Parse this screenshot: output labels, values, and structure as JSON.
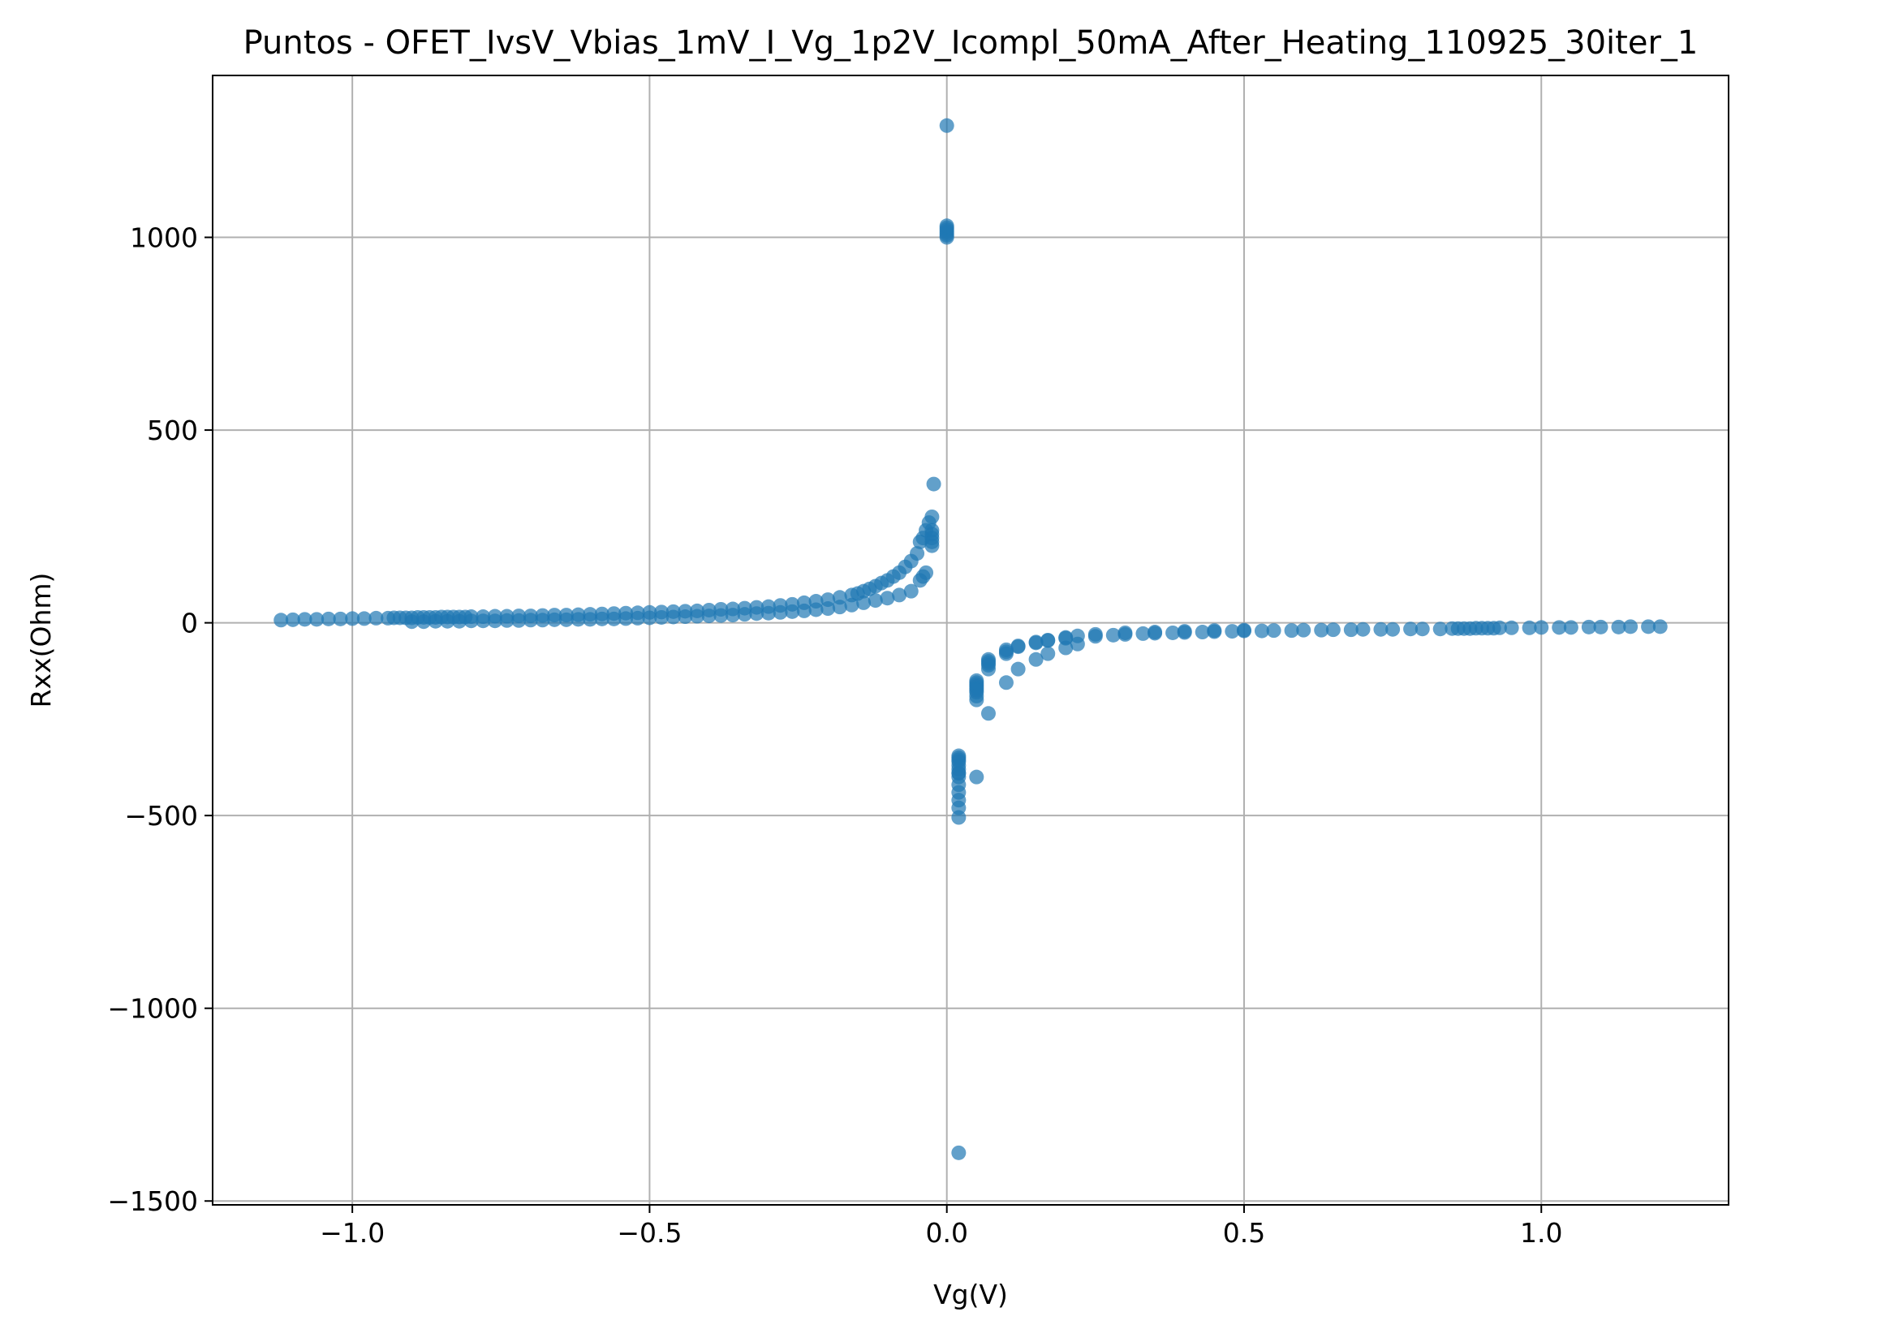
{
  "chart_data": {
    "type": "scatter",
    "title": "Puntos - OFET_IvsV_Vbias_1mV_I_Vg_1p2V_Icompl_50mA_After_Heating_110925_30iter_1",
    "xlabel": "Vg(V)",
    "ylabel": "Rxx(Ohm)",
    "xlim": [
      -1.235,
      1.315
    ],
    "ylim": [
      -1510,
      1420
    ],
    "xticks": [
      -1.0,
      -0.5,
      0.0,
      0.5,
      1.0
    ],
    "xtick_labels": [
      "−1.0",
      "−0.5",
      "0.0",
      "0.5",
      "1.0"
    ],
    "yticks": [
      -1500,
      -1000,
      -500,
      0,
      500,
      1000
    ],
    "ytick_labels": [
      "−1500",
      "−1000",
      "−500",
      "0",
      "500",
      "1000"
    ],
    "grid": true,
    "marker_color": "#1f77b4",
    "marker_alpha": 0.7,
    "series": [
      {
        "x": [
          -1.12,
          -1.1,
          -1.08,
          -1.06,
          -1.04,
          -1.02,
          -1.0,
          -0.98,
          -0.96,
          -0.94,
          -0.93,
          -0.92,
          -0.91,
          -0.9,
          -0.89,
          -0.88,
          -0.87,
          -0.86,
          -0.85,
          -0.84,
          -0.83,
          -0.82,
          -0.81,
          -0.8,
          -0.78,
          -0.76,
          -0.74,
          -0.72,
          -0.7,
          -0.68,
          -0.66,
          -0.64,
          -0.62,
          -0.6,
          -0.58,
          -0.56,
          -0.54,
          -0.52,
          -0.5,
          -0.48,
          -0.46,
          -0.44,
          -0.42,
          -0.4,
          -0.38,
          -0.36,
          -0.34,
          -0.32,
          -0.3,
          -0.28,
          -0.26,
          -0.24,
          -0.22,
          -0.2,
          -0.18,
          -0.16,
          -0.15,
          -0.14,
          -0.13,
          -0.12,
          -0.11,
          -0.1,
          -0.09,
          -0.08,
          -0.07,
          -0.06,
          -0.05,
          -0.045,
          -0.04,
          -0.035,
          -0.03,
          -0.025,
          -0.025,
          -0.025,
          -0.025,
          -0.025,
          -0.025,
          -0.022
        ],
        "y": [
          7,
          8,
          9,
          9,
          10,
          10,
          11,
          11,
          12,
          12,
          13,
          13,
          13,
          13,
          14,
          14,
          14,
          14,
          15,
          15,
          15,
          15,
          15,
          16,
          16,
          17,
          17,
          18,
          18,
          19,
          20,
          20,
          21,
          22,
          23,
          24,
          25,
          26,
          27,
          28,
          29,
          30,
          31,
          33,
          35,
          36,
          38,
          40,
          42,
          45,
          48,
          52,
          56,
          60,
          66,
          72,
          76,
          82,
          88,
          95,
          103,
          110,
          120,
          130,
          145,
          160,
          180,
          210,
          220,
          240,
          260,
          275,
          200,
          210,
          220,
          230,
          240,
          360
        ]
      },
      {
        "x": [
          -0.9,
          -0.88,
          -0.86,
          -0.84,
          -0.82,
          -0.8,
          -0.78,
          -0.76,
          -0.74,
          -0.72,
          -0.7,
          -0.68,
          -0.66,
          -0.64,
          -0.62,
          -0.6,
          -0.58,
          -0.56,
          -0.54,
          -0.52,
          -0.5,
          -0.48,
          -0.46,
          -0.44,
          -0.42,
          -0.4,
          -0.38,
          -0.36,
          -0.34,
          -0.32,
          -0.3,
          -0.28,
          -0.26,
          -0.24,
          -0.22,
          -0.2,
          -0.18,
          -0.16,
          -0.14,
          -0.12,
          -0.1,
          -0.08,
          -0.06,
          -0.045,
          -0.04,
          -0.035
        ],
        "y": [
          3,
          3,
          4,
          4,
          4,
          5,
          5,
          5,
          6,
          6,
          7,
          7,
          8,
          8,
          9,
          9,
          10,
          10,
          11,
          12,
          13,
          14,
          15,
          16,
          17,
          18,
          19,
          20,
          22,
          24,
          25,
          27,
          29,
          31,
          34,
          37,
          41,
          46,
          52,
          58,
          64,
          72,
          82,
          110,
          120,
          130
        ]
      },
      {
        "x": [
          0.0,
          0.0,
          0.0,
          0.0,
          0.0,
          0.0,
          0.0,
          0.0
        ],
        "y": [
          1290,
          1000,
          1005,
          1010,
          1015,
          1020,
          1025,
          1030
        ]
      },
      {
        "x": [
          0.02,
          0.02,
          0.02,
          0.02,
          0.02,
          0.02,
          0.02,
          0.02,
          0.02,
          0.02,
          0.02,
          0.02,
          0.02,
          0.02,
          0.05,
          0.05,
          0.05,
          0.05,
          0.05,
          0.05,
          0.05,
          0.05,
          0.05,
          0.07,
          0.07,
          0.07,
          0.07,
          0.07,
          0.1,
          0.1,
          0.1,
          0.12,
          0.12,
          0.15,
          0.15,
          0.17,
          0.17,
          0.2,
          0.2,
          0.22,
          0.25,
          0.28,
          0.3,
          0.33,
          0.35,
          0.38,
          0.4,
          0.43,
          0.45,
          0.48,
          0.5,
          0.53,
          0.55,
          0.58,
          0.6,
          0.63,
          0.65,
          0.68,
          0.7,
          0.73,
          0.75,
          0.78,
          0.8,
          0.83,
          0.85,
          0.86,
          0.87,
          0.88,
          0.89,
          0.9,
          0.91,
          0.92,
          0.93,
          0.95,
          0.98,
          1.0,
          1.03,
          1.05,
          1.08,
          1.1,
          1.13,
          1.15,
          1.18,
          1.2,
          0.02,
          0.05,
          0.07,
          0.1,
          0.12,
          0.15,
          0.17,
          0.2,
          0.22,
          0.25,
          0.3,
          0.35,
          0.4,
          0.45,
          0.5
        ],
        "y": [
          -1375,
          -505,
          -480,
          -460,
          -440,
          -420,
          -400,
          -390,
          -380,
          -370,
          -360,
          -355,
          -350,
          -345,
          -400,
          -200,
          -190,
          -180,
          -170,
          -165,
          -160,
          -155,
          -150,
          -235,
          -120,
          -110,
          -100,
          -95,
          -155,
          -80,
          -70,
          -120,
          -60,
          -95,
          -50,
          -80,
          -45,
          -65,
          -40,
          -55,
          -35,
          -32,
          -30,
          -28,
          -27,
          -26,
          -25,
          -24,
          -23,
          -22,
          -21,
          -21,
          -20,
          -20,
          -19,
          -19,
          -18,
          -18,
          -17,
          -17,
          -17,
          -16,
          -16,
          -16,
          -15,
          -15,
          -15,
          -15,
          -14,
          -14,
          -14,
          -14,
          -13,
          -13,
          -13,
          -12,
          -12,
          -12,
          -11,
          -11,
          -11,
          -10,
          -10,
          -10,
          -390,
          -175,
          -105,
          -75,
          -62,
          -52,
          -46,
          -38,
          -34,
          -30,
          -26,
          -24,
          -22,
          -20,
          -19
        ]
      }
    ]
  }
}
